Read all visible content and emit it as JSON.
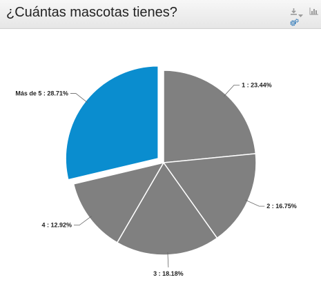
{
  "header": {
    "title": "¿Cuántas mascotas tienes?",
    "icons": [
      "download-icon",
      "dropdown-arrow-icon",
      "bar-chart-icon",
      "settings-cog-icon"
    ]
  },
  "colors": {
    "slice_default": "#808080",
    "slice_highlight": "#0a8dcf",
    "slice_border": "#ffffff",
    "accent_icon": "#1f6fb5"
  },
  "chart_data": {
    "type": "pie",
    "title": "¿Cuántas mascotas tienes?",
    "start": "12 o'clock",
    "direction": "clockwise",
    "slices": [
      {
        "category": "1",
        "value": 23.44,
        "label": "1 : 23.44%",
        "color": "#808080",
        "exploded": false
      },
      {
        "category": "2",
        "value": 16.75,
        "label": "2 : 16.75%",
        "color": "#808080",
        "exploded": false
      },
      {
        "category": "3",
        "value": 18.18,
        "label": "3 : 18.18%",
        "color": "#808080",
        "exploded": false
      },
      {
        "category": "4",
        "value": 12.92,
        "label": "4 : 12.92%",
        "color": "#808080",
        "exploded": false
      },
      {
        "category": "Más de 5",
        "value": 28.71,
        "label": "Más de 5 : 28.71%",
        "color": "#0a8dcf",
        "exploded": true
      }
    ]
  }
}
